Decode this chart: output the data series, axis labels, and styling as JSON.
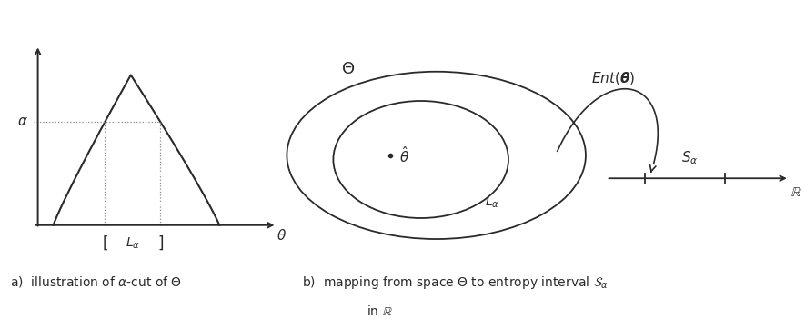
{
  "bg_color": "#ffffff",
  "line_color": "#2a2a2a",
  "dotted_color": "#888888",
  "fig_width": 8.85,
  "fig_height": 3.51,
  "dpi": 100
}
